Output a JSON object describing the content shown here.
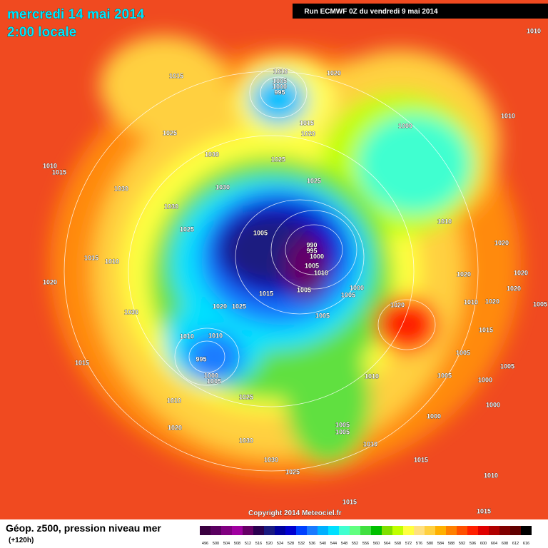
{
  "header": {
    "date": "mercredi 14 mai 2014",
    "time": "2:00 locale",
    "run": "Run ECMWF 0Z du vendredi 9 mai 2014"
  },
  "footer": {
    "title": "Géop. z500, pression niveau mer",
    "lead": "(+120h)",
    "copyright": "Copyright 2014 Meteociel.fr"
  },
  "colorbar": {
    "levels": [
      496,
      500,
      504,
      508,
      512,
      516,
      520,
      524,
      528,
      532,
      536,
      540,
      544,
      548,
      552,
      556,
      560,
      564,
      568,
      572,
      576,
      580,
      584,
      588,
      592,
      596,
      600,
      604,
      608,
      612,
      616
    ],
    "colors": [
      "#3a0040",
      "#5a0060",
      "#800080",
      "#a000a0",
      "#660066",
      "#2b0050",
      "#1a1a80",
      "#0000a0",
      "#0000d0",
      "#0040ff",
      "#1a7aff",
      "#00b0ff",
      "#00e0ff",
      "#40ffd0",
      "#60ff80",
      "#40e040",
      "#00c000",
      "#80e000",
      "#c0ff00",
      "#ffff40",
      "#ffe080",
      "#ffd040",
      "#ffb000",
      "#ff8000",
      "#ff5000",
      "#ff2000",
      "#e00000",
      "#b00000",
      "#800000",
      "#600000",
      "#000000"
    ]
  },
  "isobar_labels": [
    1010,
    1015,
    1010,
    1005,
    1000,
    995,
    1020,
    1010,
    1025,
    1015,
    1020,
    1000,
    1030,
    1025,
    1010,
    1015,
    1025,
    1030,
    1030,
    1030,
    1025,
    1005,
    990,
    995,
    1000,
    1010,
    1020,
    1015,
    1010,
    1005,
    1010,
    1020,
    1020,
    1020,
    1005,
    1000,
    1015,
    1005,
    1020,
    1020,
    1025,
    1020,
    1020,
    1010,
    1005,
    1030,
    1005,
    1015,
    1010,
    1010,
    995,
    1000,
    1005,
    1015,
    1005,
    1005,
    1010,
    1005,
    1000,
    1025,
    1010,
    1000,
    1000,
    1020,
    1005,
    1005,
    1030,
    1010,
    1030,
    1015,
    1025,
    1010,
    1015,
    1015
  ]
}
